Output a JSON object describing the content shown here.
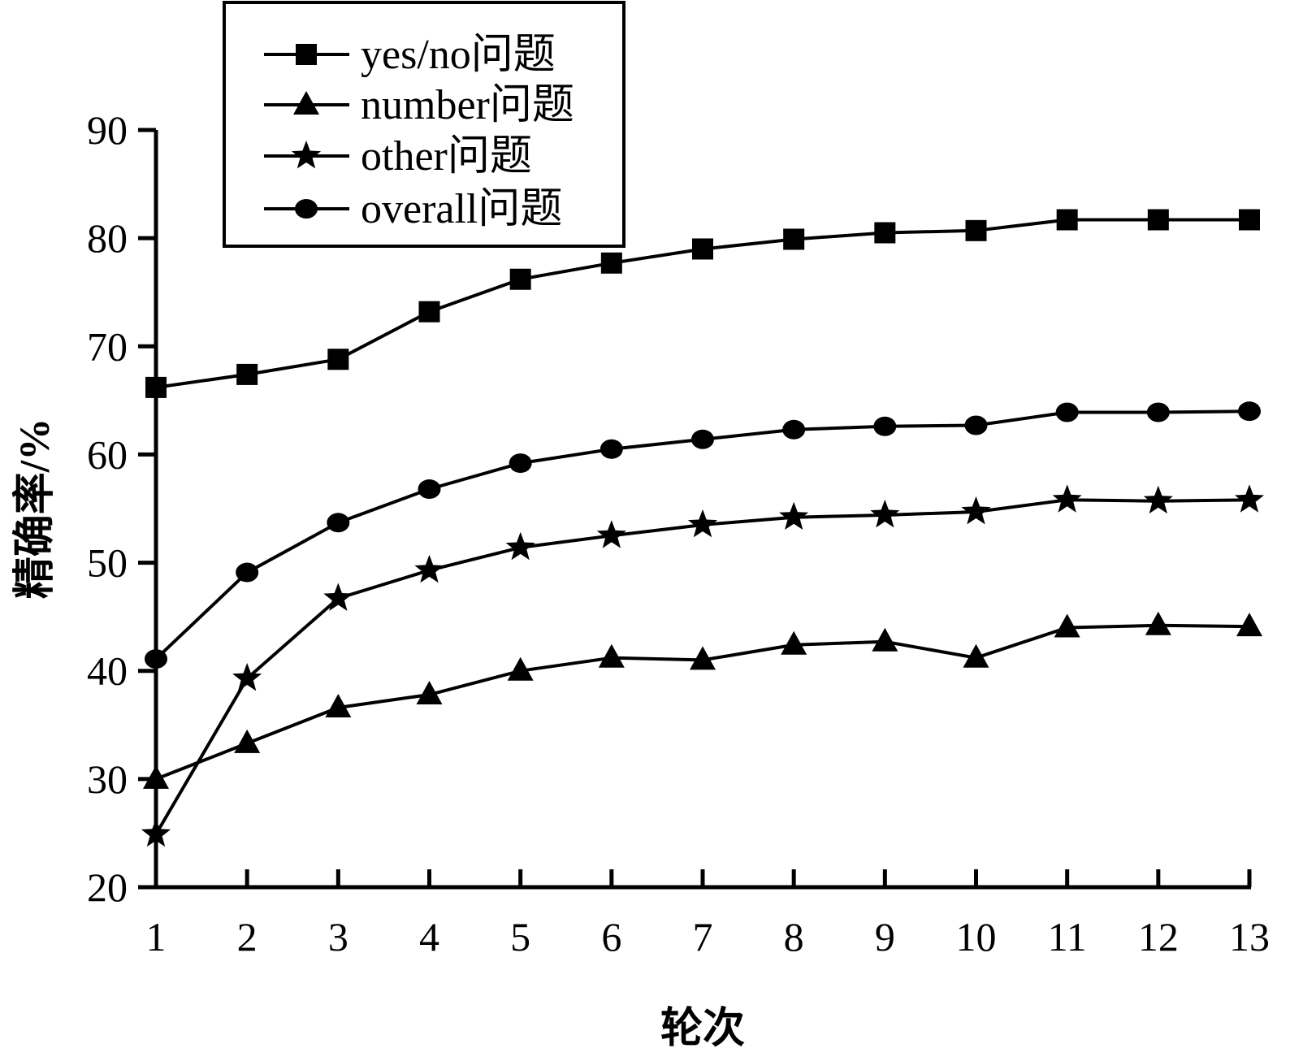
{
  "chart_data": {
    "type": "line",
    "title": "",
    "xlabel": "轮次",
    "ylabel": "精确率/%",
    "x": [
      1,
      2,
      3,
      4,
      5,
      6,
      7,
      8,
      9,
      10,
      11,
      12,
      13
    ],
    "xlim": [
      1,
      13
    ],
    "ylim": [
      20,
      90
    ],
    "yticks": [
      20,
      30,
      40,
      50,
      60,
      70,
      80,
      90
    ],
    "grid": false,
    "legend_position": "top-left",
    "series": [
      {
        "name": "yes/no问题",
        "marker": "square",
        "values": [
          66.2,
          67.4,
          68.8,
          73.2,
          76.2,
          77.7,
          79.0,
          79.9,
          80.5,
          80.7,
          81.7,
          81.7,
          81.7
        ]
      },
      {
        "name": "number问题",
        "marker": "triangle",
        "values": [
          30.0,
          33.3,
          36.6,
          37.8,
          40.0,
          41.2,
          41.0,
          42.4,
          42.7,
          41.2,
          44.0,
          44.2,
          44.1
        ]
      },
      {
        "name": "other问题",
        "marker": "star",
        "values": [
          24.9,
          39.3,
          46.7,
          49.3,
          51.4,
          52.5,
          53.5,
          54.2,
          54.4,
          54.7,
          55.8,
          55.7,
          55.8
        ]
      },
      {
        "name": "overall问题",
        "marker": "circle",
        "values": [
          41.1,
          49.1,
          53.7,
          56.8,
          59.2,
          60.5,
          61.4,
          62.3,
          62.6,
          62.7,
          63.9,
          63.9,
          64.0
        ]
      }
    ]
  }
}
